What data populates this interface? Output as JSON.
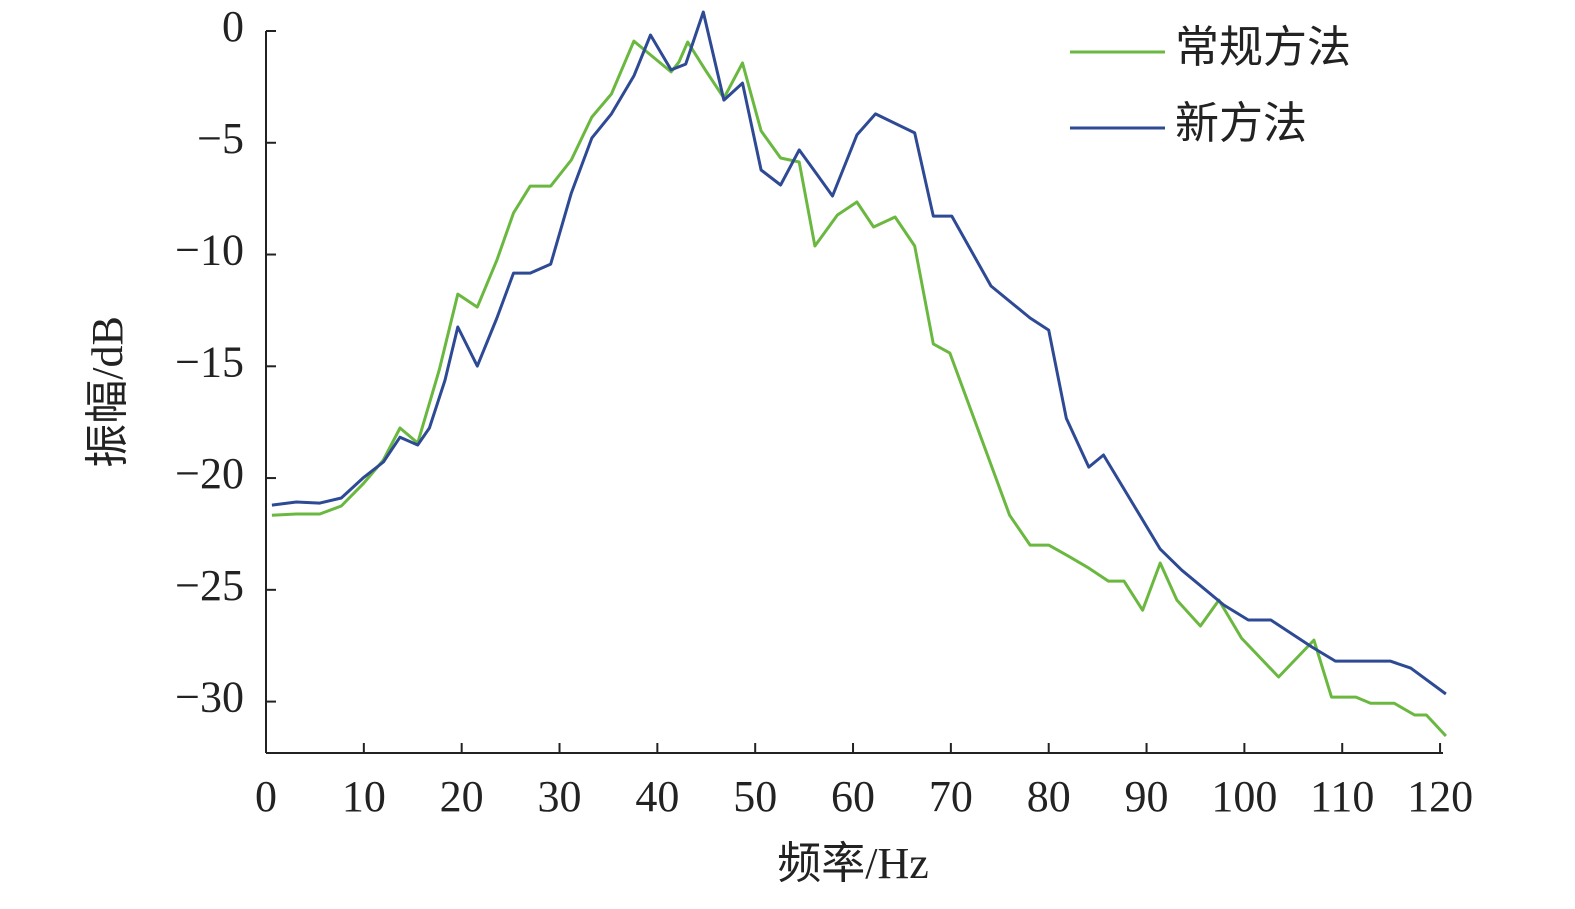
{
  "chart_data": {
    "type": "line",
    "x_label": "频率/Hz",
    "y_label": "振幅/dB",
    "xlim": [
      0,
      120.3
    ],
    "ylim": [
      -32.3,
      0
    ],
    "xticks": [
      0,
      10,
      20,
      30,
      40,
      50,
      60,
      70,
      80,
      90,
      100,
      110,
      120
    ],
    "yticks": [
      0,
      {
        "value": -5,
        "label": "−5"
      },
      {
        "value": -10,
        "label": "−10"
      },
      {
        "value": -15,
        "label": "−15"
      },
      {
        "value": -20,
        "label": "−20"
      },
      {
        "value": -25,
        "label": "−25"
      },
      {
        "value": -30,
        "label": "−30"
      }
    ],
    "legend": "upper-right",
    "series": [
      {
        "name": "常规方法",
        "color": "#6ab840",
        "x": [
          0.6,
          3.1,
          5.5,
          7.7,
          9.9,
          12.0,
          13.7,
          15.5,
          17.7,
          19.6,
          21.6,
          23.6,
          25.3,
          27.0,
          29.1,
          31.2,
          33.3,
          35.3,
          37.6,
          39.3,
          41.4,
          42.2,
          43.1,
          44.9,
          46.8,
          48.7,
          50.6,
          52.6,
          54.5,
          56.1,
          58.4,
          60.4,
          62.1,
          64.3,
          66.3,
          68.2,
          69.9,
          76.0,
          78.1,
          80.0,
          82.0,
          84.1,
          86.1,
          87.7,
          89.6,
          91.4,
          93.1,
          95.5,
          97.4,
          99.7,
          103.5,
          107.1,
          108.9,
          111.4,
          112.9,
          115.3,
          117.4,
          118.6,
          120.6
        ],
        "values": [
          -21.66,
          -21.61,
          -21.61,
          -21.25,
          -20.27,
          -19.19,
          -17.76,
          -18.43,
          -15.17,
          -11.77,
          -12.35,
          -10.25,
          -8.14,
          -6.94,
          -6.94,
          -5.77,
          -3.85,
          -2.82,
          -0.45,
          -1.07,
          -1.83,
          -1.39,
          -0.49,
          -1.74,
          -3.0,
          -1.43,
          -4.47,
          -5.68,
          -5.86,
          -9.62,
          -8.23,
          -7.65,
          -8.77,
          -8.32,
          -9.62,
          -14.0,
          -14.41,
          -21.66,
          -23.0,
          -23.0,
          -23.49,
          -24.03,
          -24.61,
          -24.61,
          -25.91,
          -23.8,
          -25.46,
          -26.62,
          -25.46,
          -27.16,
          -28.9,
          -27.25,
          -29.8,
          -29.8,
          -30.07,
          -30.07,
          -30.6,
          -30.6,
          -31.54
        ]
      },
      {
        "name": "新方法",
        "color": "#2e4a94",
        "x": [
          0.6,
          3.1,
          5.5,
          7.7,
          9.9,
          12.0,
          13.7,
          15.5,
          16.7,
          18.3,
          19.6,
          21.6,
          23.6,
          25.3,
          27.0,
          29.1,
          31.2,
          33.3,
          35.3,
          37.6,
          39.3,
          41.4,
          42.9,
          44.7,
          46.8,
          48.7,
          50.6,
          52.6,
          54.5,
          56.3,
          57.9,
          60.4,
          62.3,
          66.3,
          68.2,
          70.1,
          74.1,
          78.1,
          80.0,
          81.8,
          84.1,
          85.6,
          91.4,
          93.6,
          97.9,
          100.4,
          102.7,
          106.9,
          109.3,
          114.9,
          117.0,
          120.6
        ],
        "values": [
          -21.21,
          -21.07,
          -21.12,
          -20.89,
          -20.0,
          -19.28,
          -18.17,
          -18.52,
          -17.76,
          -15.62,
          -13.24,
          -14.99,
          -12.84,
          -10.83,
          -10.83,
          -10.43,
          -7.25,
          -4.79,
          -3.71,
          -2.01,
          -0.18,
          -1.74,
          -1.48,
          0.85,
          -3.09,
          -2.33,
          -6.22,
          -6.89,
          -5.32,
          -6.4,
          -7.38,
          -4.65,
          -3.71,
          -4.56,
          -8.28,
          -8.28,
          -11.41,
          -12.84,
          -13.38,
          -17.32,
          -19.51,
          -18.97,
          -23.18,
          -24.12,
          -25.68,
          -26.35,
          -26.35,
          -27.56,
          -28.19,
          -28.19,
          -28.5,
          -29.66
        ]
      }
    ]
  }
}
